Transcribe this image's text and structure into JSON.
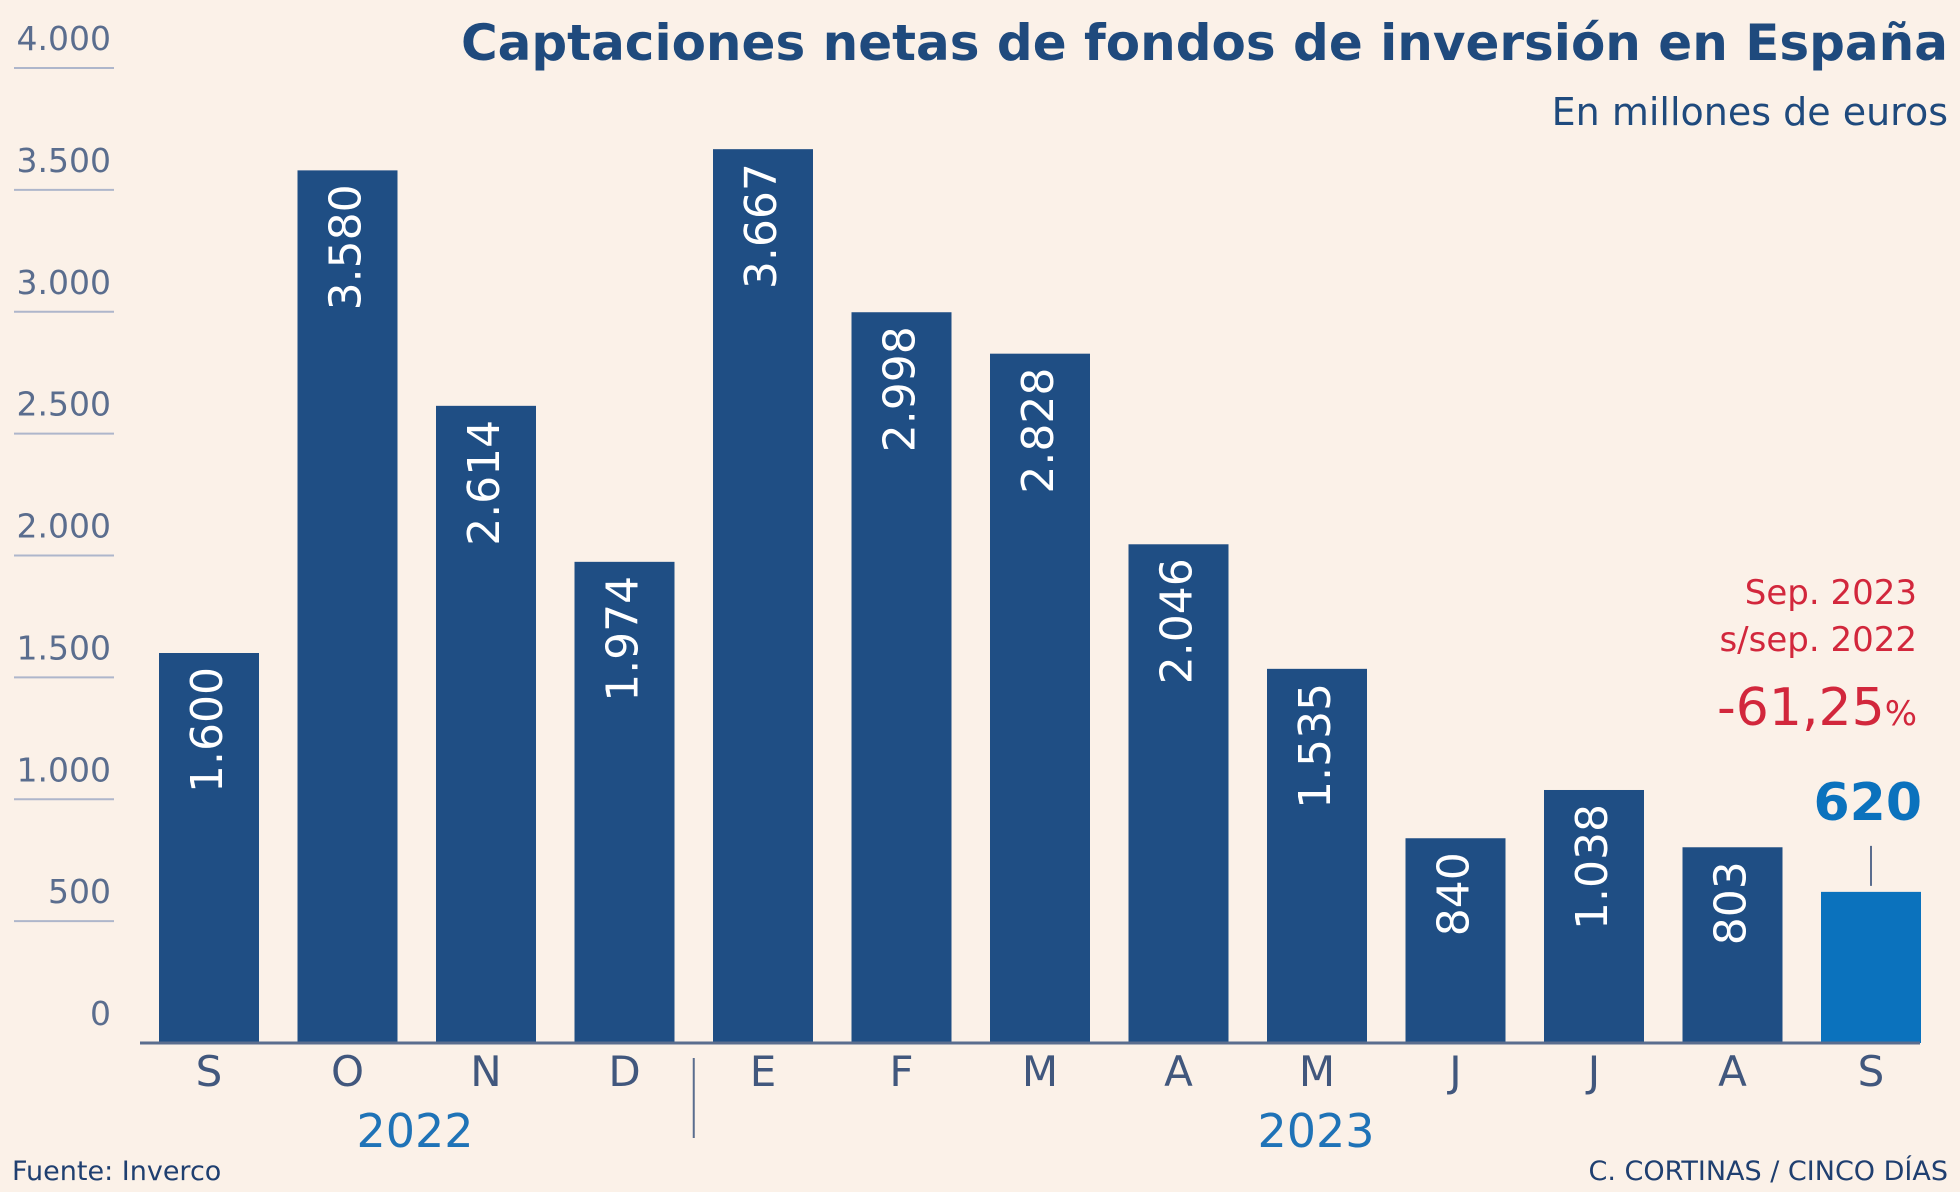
{
  "colors": {
    "background": "#fbf1e8",
    "bar": "#1f4e84",
    "bar_highlight": "#0b72bd",
    "title": "#1f4a7d",
    "annotation": "#d2273c",
    "year": "#1f73b7"
  },
  "chart_data": {
    "type": "bar",
    "title": "Captaciones netas de fondos de inversión en España",
    "subtitle": "En millones de euros",
    "categories": [
      "S",
      "O",
      "N",
      "D",
      "E",
      "F",
      "M",
      "A",
      "M",
      "J",
      "J",
      "A",
      "S"
    ],
    "values": [
      1600,
      3580,
      2614,
      1974,
      3667,
      2998,
      2828,
      2046,
      1535,
      840,
      1038,
      803,
      620
    ],
    "value_labels": [
      "1.600",
      "3.580",
      "2.614",
      "1.974",
      "3.667",
      "2.998",
      "2.828",
      "2.046",
      "1.535",
      "840",
      "1.038",
      "803",
      ""
    ],
    "ylim": [
      0,
      4000
    ],
    "yticks": [
      0,
      500,
      1000,
      1500,
      2000,
      2500,
      3000,
      3500,
      4000
    ],
    "ytick_labels": [
      "0",
      "500",
      "1.000",
      "1.500",
      "2.000",
      "2.500",
      "3.000",
      "3.500",
      "4.000"
    ],
    "year_groups": [
      {
        "label": "2022",
        "start_index": 0,
        "end_index": 3
      },
      {
        "label": "2023",
        "start_index": 4,
        "end_index": 12
      }
    ],
    "highlight": {
      "index": 12,
      "value_label": "620"
    },
    "annotation": {
      "line1": "Sep. 2023",
      "line2": "s/sep. 2022",
      "change": "-61,25",
      "change_unit": "%"
    },
    "grid": true
  },
  "footer": {
    "source": "Fuente: Inverco",
    "credit": "C. CORTINAS / CINCO DÍAS"
  }
}
